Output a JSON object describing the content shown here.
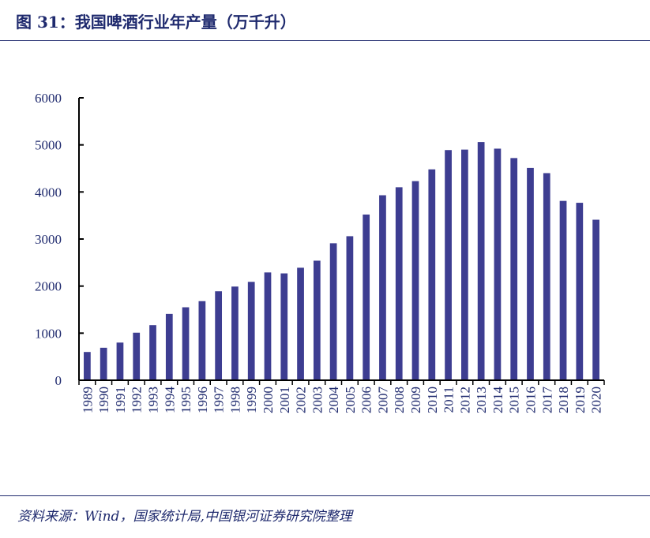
{
  "figure": {
    "title": "图 31：我国啤酒行业年产量（万千升）",
    "source": "资料来源：Wind，国家统计局,中国银河证券研究院整理"
  },
  "chart_data": {
    "type": "bar",
    "title": "图 31：我国啤酒行业年产量（万千升）",
    "xlabel": "",
    "ylabel": "",
    "ylim": [
      0,
      6000
    ],
    "yticks": [
      0,
      1000,
      2000,
      3000,
      4000,
      5000,
      6000
    ],
    "grid": false,
    "legend": "none",
    "bar_color": "#3d3d91",
    "axis_color": "#000000",
    "text_color": "#1f2a6e",
    "categories": [
      "1989",
      "1990",
      "1991",
      "1992",
      "1993",
      "1994",
      "1995",
      "1996",
      "1997",
      "1998",
      "1999",
      "2000",
      "2001",
      "2002",
      "2003",
      "2004",
      "2005",
      "2006",
      "2007",
      "2008",
      "2009",
      "2010",
      "2011",
      "2012",
      "2013",
      "2014",
      "2015",
      "2016",
      "2017",
      "2018",
      "2019",
      "2020"
    ],
    "values": [
      600,
      690,
      800,
      1010,
      1170,
      1410,
      1550,
      1680,
      1890,
      1990,
      2090,
      2290,
      2270,
      2390,
      2540,
      2910,
      3060,
      3520,
      3930,
      4100,
      4230,
      4480,
      4890,
      4900,
      5060,
      4920,
      4720,
      4510,
      4400,
      3810,
      3770,
      3410
    ]
  }
}
